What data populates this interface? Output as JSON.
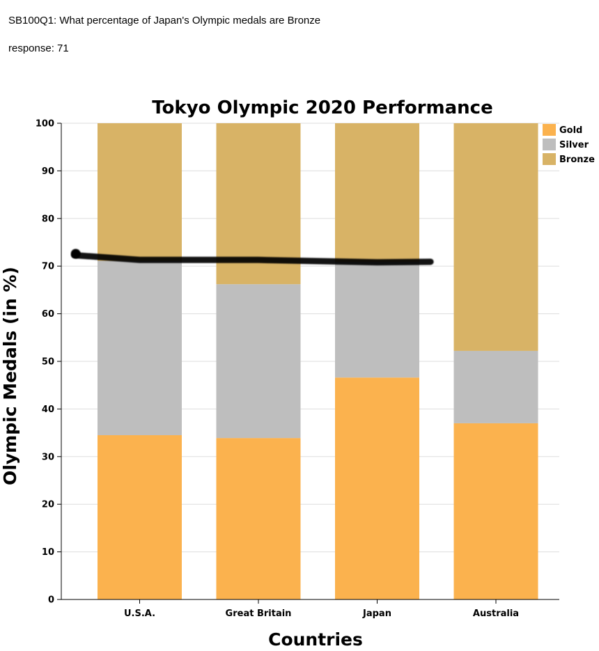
{
  "header": {
    "question": "SB100Q1: What percentage of Japan's Olympic medals are Bronze",
    "response": "response: 71"
  },
  "colors": {
    "gold": "#fbb24e",
    "silver": "#bebebe",
    "bronze": "#d8b366",
    "gridline": "#dddddd",
    "axis": "#000000",
    "annotation_stroke": "#000000"
  },
  "chart_data": {
    "type": "bar",
    "stacked": true,
    "title": "Tokyo Olympic 2020 Performance",
    "xlabel": "Countries",
    "ylabel": "Olympic Medals (in %)",
    "ylim": [
      0,
      100
    ],
    "yticks": [
      0,
      10,
      20,
      30,
      40,
      50,
      60,
      70,
      80,
      90,
      100
    ],
    "grid": true,
    "legend_position": "top-right",
    "categories": [
      "U.S.A.",
      "Great Britain",
      "Japan",
      "Australia"
    ],
    "series": [
      {
        "name": "Gold",
        "color": "#fbb24e",
        "values": [
          34.5,
          33.9,
          46.6,
          37.0
        ]
      },
      {
        "name": "Silver",
        "color": "#bebebe",
        "values": [
          36.6,
          32.3,
          24.3,
          15.2
        ]
      },
      {
        "name": "Bronze",
        "color": "#d8b366",
        "values": [
          28.9,
          33.8,
          29.1,
          47.8
        ]
      }
    ],
    "annotation": {
      "type": "hand-drawn-line",
      "description": "black marker stroke across U.S.A., Great Britain and Japan bars",
      "points": [
        [
          -0.55,
          72.3
        ],
        [
          0.0,
          71.3
        ],
        [
          1.0,
          71.3
        ],
        [
          1.6,
          71.0
        ],
        [
          2.0,
          70.8
        ],
        [
          2.45,
          70.9
        ]
      ]
    }
  }
}
